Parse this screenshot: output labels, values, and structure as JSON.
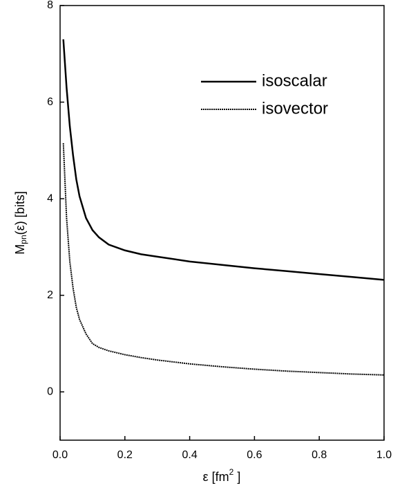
{
  "chart_data": {
    "type": "line",
    "xlabel": {
      "main": "ε [fm",
      "sup": "2",
      "end": " ]"
    },
    "ylabel": {
      "main": "M",
      "sub": "pn",
      "end": "(ε) [bits]"
    },
    "x": [
      0.01,
      0.02,
      0.03,
      0.04,
      0.05,
      0.06,
      0.08,
      0.1,
      0.12,
      0.15,
      0.2,
      0.25,
      0.3,
      0.4,
      0.5,
      0.6,
      0.7,
      0.8,
      0.9,
      1.0
    ],
    "series": [
      {
        "name": "isoscalar",
        "color": "#000000",
        "linestyle": "solid",
        "values": [
          7.3,
          6.3,
          5.5,
          4.9,
          4.4,
          4.05,
          3.6,
          3.35,
          3.2,
          3.05,
          2.93,
          2.85,
          2.8,
          2.7,
          2.63,
          2.56,
          2.5,
          2.44,
          2.38,
          2.32
        ]
      },
      {
        "name": "isovector",
        "color": "#000000",
        "linestyle": "dotted",
        "values": [
          5.15,
          3.6,
          2.7,
          2.15,
          1.75,
          1.5,
          1.2,
          1.0,
          0.92,
          0.85,
          0.77,
          0.71,
          0.66,
          0.58,
          0.52,
          0.47,
          0.43,
          0.4,
          0.37,
          0.35
        ]
      }
    ],
    "xlim": [
      0,
      1
    ],
    "xticks": [
      {
        "value": 0,
        "label": "0.0"
      },
      0.2,
      0.4,
      0.6,
      0.8,
      {
        "value": 1,
        "label": "1.0"
      }
    ],
    "ylim": [
      -1,
      8
    ],
    "yticks": [
      0,
      2,
      4,
      6,
      8
    ],
    "grid": false,
    "legend": "upper right"
  }
}
